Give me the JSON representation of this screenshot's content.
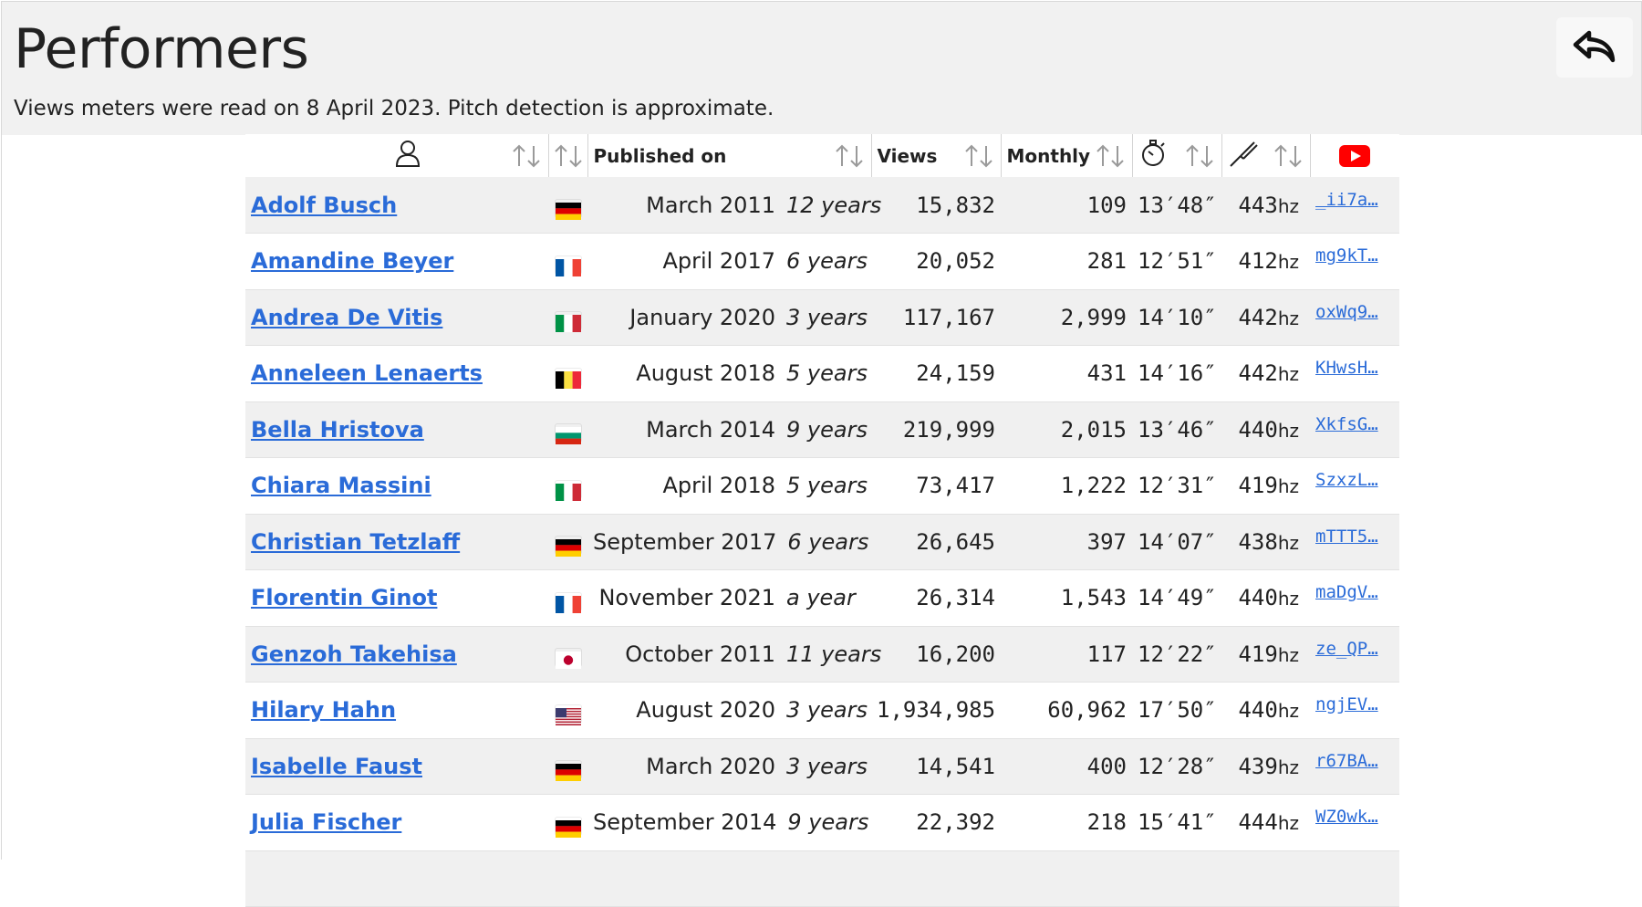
{
  "header": {
    "title": "Performers",
    "subtitle": "Views meters were read on 8 April 2023. Pitch detection is approximate.",
    "back_icon": "reply-arrow-icon"
  },
  "table": {
    "columns": {
      "performer_icon": "person-icon",
      "published": "Published on",
      "views": "Views",
      "monthly": "Monthly",
      "duration_icon": "stopwatch-icon",
      "pitch_icon": "tuning-fork-icon",
      "youtube_icon": "youtube-icon"
    },
    "colors": {
      "link": "#2a6bd8",
      "youtube_red": "#ff0000",
      "stripe": "#f0f0f0"
    },
    "rows": [
      {
        "name": "Adolf Busch",
        "flag": "de",
        "date": "March 2011",
        "age": "12 years",
        "views": "15,832",
        "monthly": "109",
        "duration": "13′48″",
        "pitch": "443",
        "video": "_ii7a…"
      },
      {
        "name": "Amandine Beyer",
        "flag": "fr",
        "date": "April 2017",
        "age": "6 years",
        "views": "20,052",
        "monthly": "281",
        "duration": "12′51″",
        "pitch": "412",
        "video": "mg9kT…"
      },
      {
        "name": "Andrea De Vitis",
        "flag": "it",
        "date": "January 2020",
        "age": "3 years",
        "views": "117,167",
        "monthly": "2,999",
        "duration": "14′10″",
        "pitch": "442",
        "video": "oxWq9…"
      },
      {
        "name": "Anneleen Lenaerts",
        "flag": "be",
        "date": "August 2018",
        "age": "5 years",
        "views": "24,159",
        "monthly": "431",
        "duration": "14′16″",
        "pitch": "442",
        "video": "KHwsH…"
      },
      {
        "name": "Bella Hristova",
        "flag": "bg",
        "date": "March 2014",
        "age": "9 years",
        "views": "219,999",
        "monthly": "2,015",
        "duration": "13′46″",
        "pitch": "440",
        "video": "XkfsG…"
      },
      {
        "name": "Chiara Massini",
        "flag": "it",
        "date": "April 2018",
        "age": "5 years",
        "views": "73,417",
        "monthly": "1,222",
        "duration": "12′31″",
        "pitch": "419",
        "video": "SzxzL…"
      },
      {
        "name": "Christian Tetzlaff",
        "flag": "de",
        "date": "September 2017",
        "age": "6 years",
        "views": "26,645",
        "monthly": "397",
        "duration": "14′07″",
        "pitch": "438",
        "video": "mTTT5…"
      },
      {
        "name": "Florentin Ginot",
        "flag": "fr",
        "date": "November 2021",
        "age": "a year",
        "views": "26,314",
        "monthly": "1,543",
        "duration": "14′49″",
        "pitch": "440",
        "video": "maDgV…"
      },
      {
        "name": "Genzoh Takehisa",
        "flag": "jp",
        "date": "October 2011",
        "age": "11 years",
        "views": "16,200",
        "monthly": "117",
        "duration": "12′22″",
        "pitch": "419",
        "video": "ze_QP…"
      },
      {
        "name": "Hilary Hahn",
        "flag": "us",
        "date": "August 2020",
        "age": "3 years",
        "views": "1,934,985",
        "monthly": "60,962",
        "duration": "17′50″",
        "pitch": "440",
        "video": "ngjEV…"
      },
      {
        "name": "Isabelle Faust",
        "flag": "de",
        "date": "March 2020",
        "age": "3 years",
        "views": "14,541",
        "monthly": "400",
        "duration": "12′28″",
        "pitch": "439",
        "video": "r67BA…"
      },
      {
        "name": "Julia Fischer",
        "flag": "de",
        "date": "September 2014",
        "age": "9 years",
        "views": "22,392",
        "monthly": "218",
        "duration": "15′41″",
        "pitch": "444",
        "video": "WZ0wk…"
      },
      {
        "name": "",
        "flag": "",
        "date": "",
        "age": "",
        "views": "",
        "monthly": "",
        "duration": "",
        "pitch": "",
        "video": ""
      }
    ],
    "hz_unit": "hz"
  }
}
